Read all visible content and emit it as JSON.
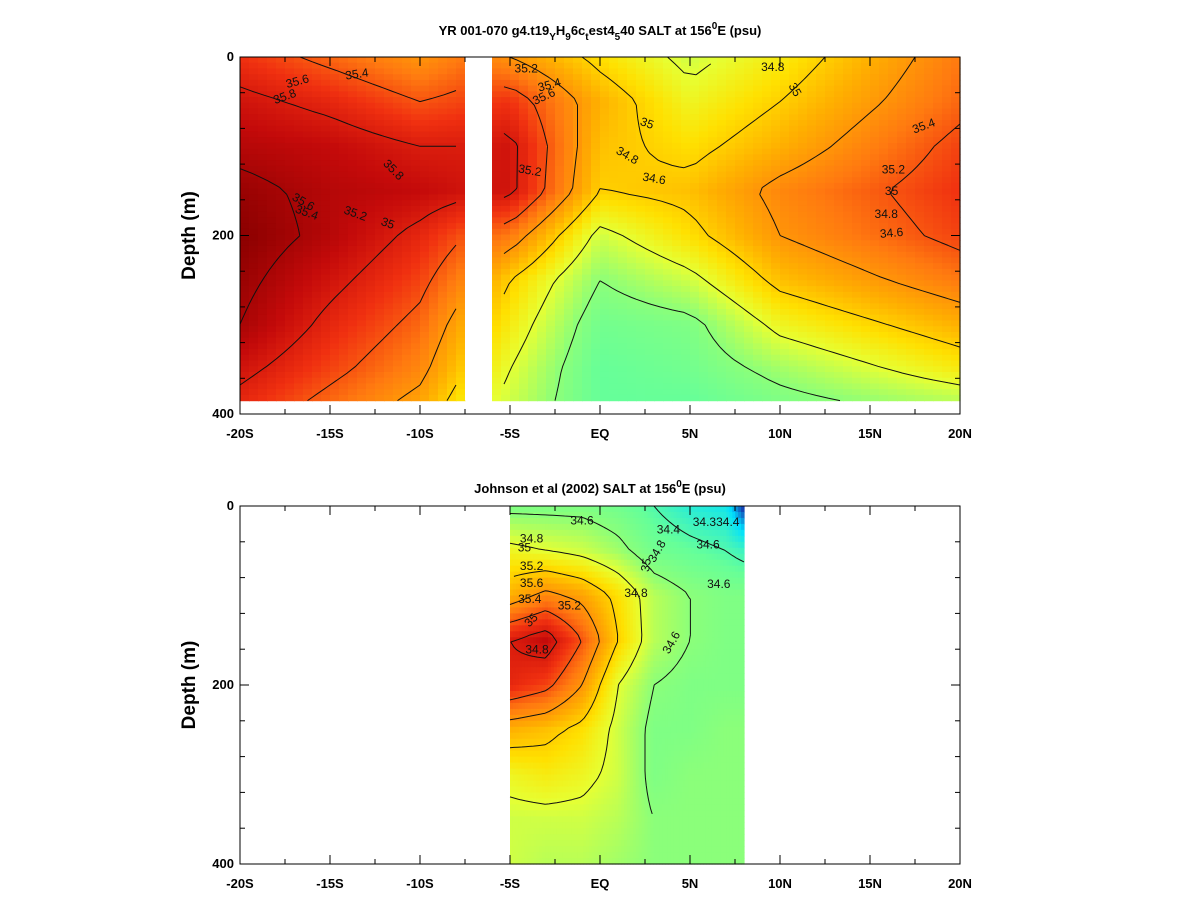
{
  "chart_data": [
    {
      "type": "heatmap",
      "title": {
        "prefix": "YR 001-070 g4.t19",
        "sub1": "Y",
        "mid1": "H",
        "sub2": "9",
        "mid2": "6c",
        "sub3": "t",
        "mid3": "est4",
        "sub4": "5",
        "mid4": "40 SALT at 156",
        "sup": "0",
        "suffix": "E (psu)"
      },
      "xlabel": "",
      "ylabel": "Depth (m)",
      "xlim": [
        -20,
        20
      ],
      "ylim": [
        0,
        400
      ],
      "y_inverted": true,
      "x_ticks": [
        -20,
        -15,
        -10,
        -5,
        0,
        5,
        10,
        15,
        20
      ],
      "x_tick_labels": [
        "-20S",
        "-15S",
        "-10S",
        "-5S",
        "EQ",
        "5N",
        "10N",
        "15N",
        "20N"
      ],
      "y_ticks": [
        0,
        200,
        400
      ],
      "y_tick_labels": [
        "0",
        "200",
        "400"
      ],
      "data_extent": {
        "x": [
          -20,
          20
        ],
        "depth": [
          0,
          385
        ]
      },
      "gap": [
        -7.5,
        -6.0
      ],
      "colorscale": [
        {
          "v": 34.0,
          "c": "#1a1aa0"
        },
        {
          "v": 34.2,
          "c": "#00e0ff"
        },
        {
          "v": 34.45,
          "c": "#66ff99"
        },
        {
          "v": 34.6,
          "c": "#8bff7a"
        },
        {
          "v": 34.8,
          "c": "#e6ff33"
        },
        {
          "v": 34.95,
          "c": "#ffe000"
        },
        {
          "v": 35.1,
          "c": "#ffb000"
        },
        {
          "v": 35.3,
          "c": "#ff7a10"
        },
        {
          "v": 35.5,
          "c": "#f03010"
        },
        {
          "v": 35.7,
          "c": "#c40a0a"
        },
        {
          "v": 35.9,
          "c": "#8a0000"
        }
      ],
      "field": {
        "nx": 9,
        "nz": 9,
        "x": [
          -20,
          -15,
          -10,
          -7.5,
          -5,
          0,
          5,
          10,
          20
        ],
        "depth": [
          0,
          50,
          100,
          150,
          200,
          250,
          300,
          350,
          385
        ],
        "values": [
          [
            35.5,
            35.35,
            35.2,
            35.3,
            35.2,
            34.95,
            34.75,
            34.9,
            35.3
          ],
          [
            35.65,
            35.55,
            35.4,
            35.45,
            35.5,
            35.1,
            34.85,
            35.0,
            35.35
          ],
          [
            35.75,
            35.7,
            35.6,
            35.6,
            35.65,
            35.05,
            34.95,
            35.1,
            35.45
          ],
          [
            35.85,
            35.75,
            35.7,
            35.65,
            35.65,
            35.0,
            35.05,
            35.25,
            35.5
          ],
          [
            35.9,
            35.75,
            35.55,
            35.4,
            35.3,
            34.75,
            34.95,
            35.2,
            35.45
          ],
          [
            35.85,
            35.65,
            35.45,
            35.25,
            35.0,
            34.6,
            34.75,
            35.05,
            35.3
          ],
          [
            35.8,
            35.55,
            35.35,
            35.1,
            34.9,
            34.5,
            34.55,
            34.85,
            35.1
          ],
          [
            35.65,
            35.45,
            35.25,
            35.0,
            34.8,
            34.45,
            34.5,
            34.65,
            34.9
          ],
          [
            35.55,
            35.35,
            35.15,
            34.9,
            34.75,
            34.45,
            34.45,
            34.55,
            34.7
          ]
        ]
      },
      "contour_levels": [
        34.6,
        34.8,
        35.0,
        35.2,
        35.4,
        35.6,
        35.8
      ],
      "annotations": [
        {
          "text": "35.4",
          "x": -13.5,
          "y": 20,
          "rot": -8
        },
        {
          "text": "35.6",
          "x": -16.8,
          "y": 28,
          "rot": -15
        },
        {
          "text": "35.8",
          "x": -17.5,
          "y": 45,
          "rot": -20
        },
        {
          "text": "35.8",
          "x": -11.5,
          "y": 127,
          "rot": 45
        },
        {
          "text": "35.6",
          "x": -16.5,
          "y": 163,
          "rot": 30
        },
        {
          "text": "35.4",
          "x": -16.3,
          "y": 175,
          "rot": 20
        },
        {
          "text": "35.2",
          "x": -13.6,
          "y": 176,
          "rot": 20
        },
        {
          "text": "35",
          "x": -11.8,
          "y": 187,
          "rot": 20
        },
        {
          "text": "35.2",
          "x": -4.1,
          "y": 14,
          "rot": 0
        },
        {
          "text": "35.4",
          "x": -2.8,
          "y": 32,
          "rot": -15
        },
        {
          "text": "35.6",
          "x": -3.1,
          "y": 45,
          "rot": -25
        },
        {
          "text": "35",
          "x": 2.6,
          "y": 75,
          "rot": 20
        },
        {
          "text": "34.8",
          "x": 1.5,
          "y": 111,
          "rot": 30
        },
        {
          "text": "34.6",
          "x": 3.0,
          "y": 137,
          "rot": 10
        },
        {
          "text": "35.2",
          "x": -3.9,
          "y": 128,
          "rot": 10
        },
        {
          "text": "34.8",
          "x": 9.6,
          "y": 12,
          "rot": 0
        },
        {
          "text": "35",
          "x": 10.8,
          "y": 37,
          "rot": 60
        },
        {
          "text": "35.4",
          "x": 18.0,
          "y": 78,
          "rot": -20
        },
        {
          "text": "35.2",
          "x": 16.3,
          "y": 127,
          "rot": 0
        },
        {
          "text": "35",
          "x": 16.2,
          "y": 151,
          "rot": 0
        },
        {
          "text": "34.8",
          "x": 15.9,
          "y": 177,
          "rot": 0
        },
        {
          "text": "34.6",
          "x": 16.2,
          "y": 198,
          "rot": -5
        }
      ]
    },
    {
      "type": "heatmap",
      "title": {
        "prefix": "Johnson et al (2002) SALT at 156",
        "sup": "0",
        "suffix": "E (psu)"
      },
      "xlabel": "",
      "ylabel": "Depth (m)",
      "xlim": [
        -20,
        20
      ],
      "ylim": [
        0,
        400
      ],
      "y_inverted": true,
      "x_ticks": [
        -20,
        -15,
        -10,
        -5,
        0,
        5,
        10,
        15,
        20
      ],
      "x_tick_labels": [
        "-20S",
        "-15S",
        "-10S",
        "-5S",
        "EQ",
        "5N",
        "10N",
        "15N",
        "20N"
      ],
      "y_ticks": [
        0,
        200,
        400
      ],
      "y_tick_labels": [
        "0",
        "200",
        "400"
      ],
      "data_extent": {
        "x": [
          -5,
          8
        ],
        "depth": [
          0,
          400
        ]
      },
      "colorscale": [
        {
          "v": 34.0,
          "c": "#1a1aa0"
        },
        {
          "v": 34.2,
          "c": "#00e0ff"
        },
        {
          "v": 34.45,
          "c": "#66ff99"
        },
        {
          "v": 34.6,
          "c": "#8bff7a"
        },
        {
          "v": 34.8,
          "c": "#e6ff33"
        },
        {
          "v": 34.95,
          "c": "#ffe000"
        },
        {
          "v": 35.1,
          "c": "#ffb000"
        },
        {
          "v": 35.3,
          "c": "#ff7a10"
        },
        {
          "v": 35.5,
          "c": "#f03010"
        },
        {
          "v": 35.7,
          "c": "#c40a0a"
        },
        {
          "v": 35.9,
          "c": "#8a0000"
        }
      ],
      "field": {
        "nx": 8,
        "nz": 9,
        "x": [
          -5,
          -3,
          -1,
          1,
          3,
          5,
          7,
          8
        ],
        "depth": [
          0,
          50,
          100,
          150,
          200,
          250,
          300,
          350,
          400
        ],
        "values": [
          [
            34.55,
            34.55,
            34.55,
            34.5,
            34.4,
            34.3,
            34.25,
            34.0
          ],
          [
            34.85,
            34.8,
            34.75,
            34.65,
            34.5,
            34.45,
            34.4,
            34.35
          ],
          [
            35.1,
            35.25,
            35.15,
            34.95,
            34.7,
            34.6,
            34.55,
            34.55
          ],
          [
            35.6,
            35.7,
            35.4,
            35.0,
            34.7,
            34.6,
            34.55,
            34.55
          ],
          [
            35.55,
            35.45,
            35.2,
            34.8,
            34.6,
            34.55,
            34.55,
            34.55
          ],
          [
            35.1,
            35.05,
            34.95,
            34.75,
            34.55,
            34.55,
            34.6,
            34.6
          ],
          [
            34.85,
            34.9,
            34.85,
            34.75,
            34.55,
            34.6,
            34.6,
            34.6
          ],
          [
            34.75,
            34.75,
            34.75,
            34.7,
            34.6,
            34.6,
            34.6,
            34.6
          ],
          [
            34.75,
            34.7,
            34.7,
            34.65,
            34.6,
            34.6,
            34.6,
            34.6
          ]
        ]
      },
      "contour_levels": [
        34.4,
        34.6,
        34.8,
        35.0,
        35.2,
        35.4,
        35.6
      ],
      "annotations": [
        {
          "text": "34.6",
          "x": -1.0,
          "y": 17,
          "rot": 0
        },
        {
          "text": "34.4",
          "x": 3.8,
          "y": 27,
          "rot": 0
        },
        {
          "text": "34.3",
          "x": 5.8,
          "y": 19,
          "rot": 0
        },
        {
          "text": "34.4",
          "x": 7.1,
          "y": 19,
          "rot": 0
        },
        {
          "text": "34.8",
          "x": -3.8,
          "y": 37,
          "rot": 0
        },
        {
          "text": "35",
          "x": -4.2,
          "y": 47,
          "rot": 0
        },
        {
          "text": "34.8",
          "x": 3.2,
          "y": 51,
          "rot": -60
        },
        {
          "text": "34.6",
          "x": 6.0,
          "y": 44,
          "rot": 0
        },
        {
          "text": "35.2",
          "x": -3.8,
          "y": 68,
          "rot": 0
        },
        {
          "text": "35",
          "x": 2.6,
          "y": 66,
          "rot": -80
        },
        {
          "text": "35.6",
          "x": -3.8,
          "y": 87,
          "rot": 0
        },
        {
          "text": "34.6",
          "x": 6.6,
          "y": 88,
          "rot": 0
        },
        {
          "text": "35.4",
          "x": -3.9,
          "y": 105,
          "rot": 0
        },
        {
          "text": "34.8",
          "x": 2.0,
          "y": 98,
          "rot": 0
        },
        {
          "text": "35.2",
          "x": -1.7,
          "y": 112,
          "rot": 0
        },
        {
          "text": "35",
          "x": -3.8,
          "y": 128,
          "rot": -45
        },
        {
          "text": "34.6",
          "x": 4.0,
          "y": 153,
          "rot": -60
        },
        {
          "text": "34.8",
          "x": -3.5,
          "y": 161,
          "rot": 0
        }
      ]
    }
  ]
}
